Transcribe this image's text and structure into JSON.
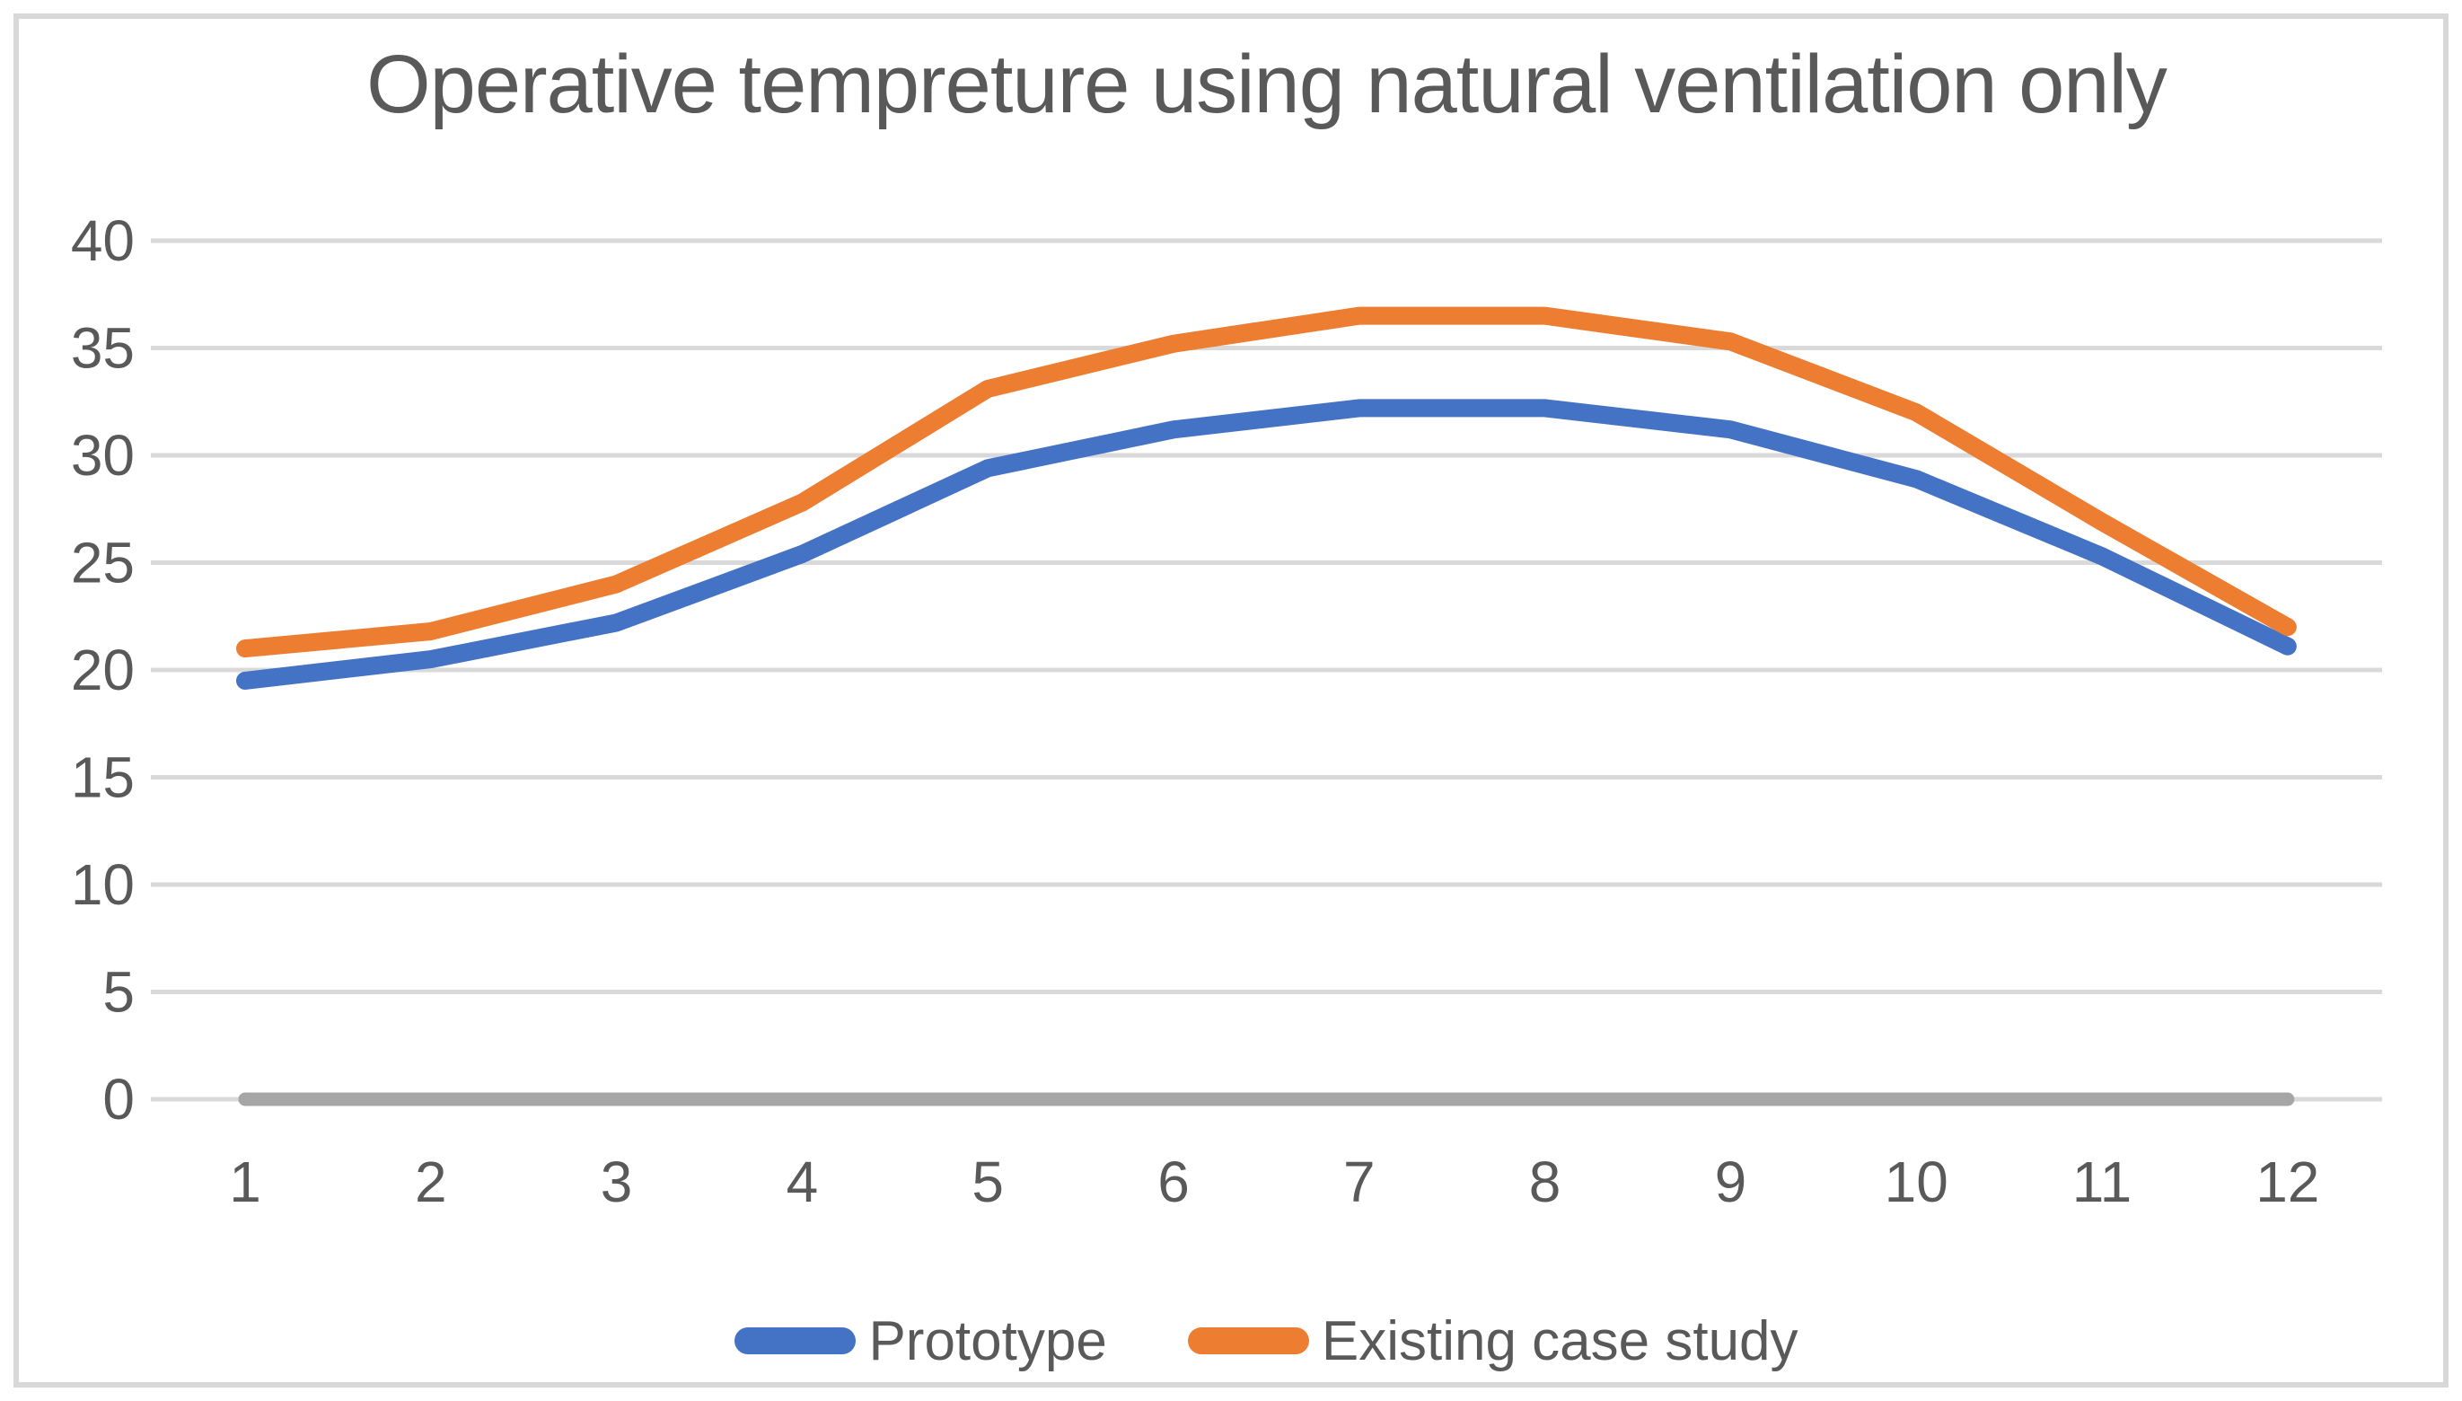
{
  "chart_data": {
    "type": "line",
    "title": "Operative tempreture using natural ventilation only",
    "categories": [
      "1",
      "2",
      "3",
      "4",
      "5",
      "6",
      "7",
      "8",
      "9",
      "10",
      "11",
      "12"
    ],
    "series": [
      {
        "name": "Prototype",
        "color": "#4472C4",
        "values": [
          19.5,
          20.5,
          22.2,
          25.4,
          29.4,
          31.2,
          32.2,
          32.2,
          31.2,
          28.9,
          25.3,
          21.1
        ]
      },
      {
        "name": "Existing case study",
        "color": "#ED7D31",
        "values": [
          21.0,
          21.8,
          24.0,
          27.8,
          33.1,
          35.2,
          36.5,
          36.5,
          35.3,
          32.0,
          26.9,
          22.0
        ]
      }
    ],
    "baseline_series": {
      "value": 0,
      "color": "#A6A6A6"
    },
    "xlabel": "",
    "ylabel": "",
    "ylim": [
      0,
      40
    ],
    "yticks": [
      0,
      5,
      10,
      15,
      20,
      25,
      30,
      35,
      40
    ],
    "grid": true,
    "gridline_color": "#D9D9D9",
    "axis_text_color": "#595959",
    "title_color": "#595959",
    "legend_position": "bottom"
  }
}
